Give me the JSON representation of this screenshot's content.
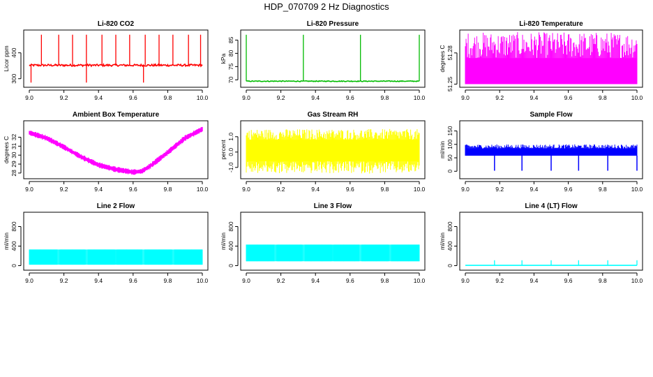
{
  "title": "HDP_070709  2 Hz Diagnostics",
  "chart_data": [
    {
      "id": "co2",
      "type": "line",
      "title": "Li-820 CO2",
      "ylabel": "Licor ppm",
      "color": "#ff0000",
      "xlim": [
        9.0,
        10.0
      ],
      "ylim": [
        275,
        480
      ],
      "xticks": [
        9.0,
        9.2,
        9.4,
        9.6,
        9.8,
        10.0
      ],
      "xtick_labels": [
        "9.0",
        "9.2",
        "9.4",
        "9.6",
        "9.8",
        "10.0"
      ],
      "yticks": [
        300,
        400
      ],
      "ytick_labels": [
        "300",
        "400"
      ],
      "baseline": 352,
      "noise": 4,
      "spikes_up": [
        9.07,
        9.17,
        9.25,
        9.33,
        9.42,
        9.5,
        9.58,
        9.67,
        9.75,
        9.83,
        9.92,
        9.99
      ],
      "spike_up_to": 470,
      "spikes_down": [
        9.01,
        9.33,
        9.66
      ],
      "spike_down_to": 285
    },
    {
      "id": "pressure",
      "type": "line",
      "title": "Li-820 Pressure",
      "ylabel": "kPa",
      "color": "#00bb00",
      "xlim": [
        9.0,
        10.0
      ],
      "ylim": [
        68,
        88
      ],
      "xticks": [
        9.0,
        9.2,
        9.4,
        9.6,
        9.8,
        10.0
      ],
      "xtick_labels": [
        "9.0",
        "9.2",
        "9.4",
        "9.6",
        "9.8",
        "10.0"
      ],
      "yticks": [
        70,
        75,
        80,
        85
      ],
      "ytick_labels": [
        "70",
        "75",
        "80",
        "85"
      ],
      "baseline": 69.5,
      "noise": 0.15,
      "spikes_up": [
        9.0,
        9.33,
        9.66,
        10.0
      ],
      "spike_up_to": 87
    },
    {
      "id": "temp",
      "type": "band",
      "title": "Li-820 Temperature",
      "ylabel": "degrees C",
      "color": "#ff00ff",
      "xlim": [
        9.0,
        10.0
      ],
      "ylim": [
        51.249,
        51.3
      ],
      "xticks": [
        9.0,
        9.2,
        9.4,
        9.6,
        9.8,
        10.0
      ],
      "xtick_labels": [
        "9.0",
        "9.2",
        "9.4",
        "9.6",
        "9.8",
        "10.0"
      ],
      "yticks": [
        51.25,
        51.28
      ],
      "ytick_labels": [
        "51.25",
        "51.28"
      ],
      "band_low": 51.25,
      "band_high": 51.275,
      "band_top": 51.3
    },
    {
      "id": "ambient",
      "type": "band_curve",
      "title": "Ambient Box Temperature",
      "ylabel": "degrees C",
      "color": "#ff00ff",
      "xlim": [
        9.0,
        10.0
      ],
      "ylim": [
        27.6,
        33.6
      ],
      "xticks": [
        9.0,
        9.2,
        9.4,
        9.6,
        9.8,
        10.0
      ],
      "xtick_labels": [
        "9.0",
        "9.2",
        "9.4",
        "9.6",
        "9.8",
        "10.0"
      ],
      "yticks": [
        28,
        29,
        30,
        31,
        32
      ],
      "ytick_labels": [
        "28",
        "29",
        "30",
        "31",
        "32"
      ],
      "curve": [
        [
          9.0,
          32.5
        ],
        [
          9.1,
          31.9
        ],
        [
          9.2,
          30.9
        ],
        [
          9.3,
          29.8
        ],
        [
          9.4,
          28.9
        ],
        [
          9.5,
          28.4
        ],
        [
          9.6,
          28.1
        ],
        [
          9.65,
          28.2
        ],
        [
          9.7,
          28.8
        ],
        [
          9.8,
          30.3
        ],
        [
          9.9,
          31.9
        ],
        [
          10.0,
          32.9
        ]
      ],
      "band_width": 0.5
    },
    {
      "id": "rh",
      "type": "band",
      "title": "Gas Stream RH",
      "ylabel": "percent",
      "color": "#ffff00",
      "xlim": [
        9.0,
        10.0
      ],
      "ylim": [
        -1.6,
        1.9
      ],
      "xticks": [
        9.0,
        9.2,
        9.4,
        9.6,
        9.8,
        10.0
      ],
      "xtick_labels": [
        "9.0",
        "9.2",
        "9.4",
        "9.6",
        "9.8",
        "10.0"
      ],
      "yticks": [
        -1.0,
        0.0,
        1.0
      ],
      "ytick_labels": [
        "-1.0",
        "0.0",
        "1.0"
      ],
      "band_low": -0.6,
      "band_high": 0.8,
      "band_top": 1.5,
      "band_bottom": -1.4
    },
    {
      "id": "sample",
      "type": "band",
      "title": "Sample Flow",
      "ylabel": "ml/min",
      "color": "#0000ff",
      "xlim": [
        9.0,
        10.0
      ],
      "ylim": [
        -20,
        180
      ],
      "xticks": [
        9.0,
        9.2,
        9.4,
        9.6,
        9.8,
        10.0
      ],
      "xtick_labels": [
        "9.0",
        "9.2",
        "9.4",
        "9.6",
        "9.8",
        "10.0"
      ],
      "yticks": [
        0,
        50,
        100,
        150
      ],
      "ytick_labels": [
        "0",
        "50",
        "100",
        "150"
      ],
      "band_low": 58,
      "band_high": 85,
      "band_top": 100,
      "dips": [
        9.17,
        9.33,
        9.5,
        9.66,
        9.83,
        10.0
      ],
      "dip_to": 2
    },
    {
      "id": "line2",
      "type": "band",
      "title": "Line 2 Flow",
      "ylabel": "ml/min",
      "color": "#00ffff",
      "xlim": [
        9.0,
        10.0
      ],
      "ylim": [
        -50,
        1050
      ],
      "xticks": [
        9.0,
        9.2,
        9.4,
        9.6,
        9.8,
        10.0
      ],
      "xtick_labels": [
        "9.0",
        "9.2",
        "9.4",
        "9.6",
        "9.8",
        "10.0"
      ],
      "yticks": [
        0,
        400,
        800
      ],
      "ytick_labels": [
        "0",
        "400",
        "800"
      ],
      "band_low": 20,
      "band_high": 330,
      "gaps": [
        9.17,
        9.33,
        9.5,
        9.66,
        9.83
      ]
    },
    {
      "id": "line3",
      "type": "band",
      "title": "Line 3 Flow",
      "ylabel": "ml/min",
      "color": "#00ffff",
      "xlim": [
        9.0,
        10.0
      ],
      "ylim": [
        -50,
        1050
      ],
      "xticks": [
        9.0,
        9.2,
        9.4,
        9.6,
        9.8,
        10.0
      ],
      "xtick_labels": [
        "9.0",
        "9.2",
        "9.4",
        "9.6",
        "9.8",
        "10.0"
      ],
      "yticks": [
        0,
        400,
        800
      ],
      "ytick_labels": [
        "0",
        "400",
        "800"
      ],
      "band_low": 90,
      "band_high": 430,
      "gaps": [
        9.17,
        9.33,
        9.5,
        9.66,
        9.83
      ]
    },
    {
      "id": "line4",
      "type": "line",
      "title": "Line 4 (LT) Flow",
      "ylabel": "ml/min",
      "color": "#00ffff",
      "xlim": [
        9.0,
        10.0
      ],
      "ylim": [
        -50,
        1050
      ],
      "xticks": [
        9.0,
        9.2,
        9.4,
        9.6,
        9.8,
        10.0
      ],
      "xtick_labels": [
        "9.0",
        "9.2",
        "9.4",
        "9.6",
        "9.8",
        "10.0"
      ],
      "yticks": [
        0,
        400,
        800
      ],
      "ytick_labels": [
        "0",
        "400",
        "800"
      ],
      "baseline": 5,
      "noise": 0,
      "spikes_up": [
        9.17,
        9.33,
        9.5,
        9.66,
        9.83,
        10.0
      ],
      "spike_up_to": 110
    }
  ]
}
